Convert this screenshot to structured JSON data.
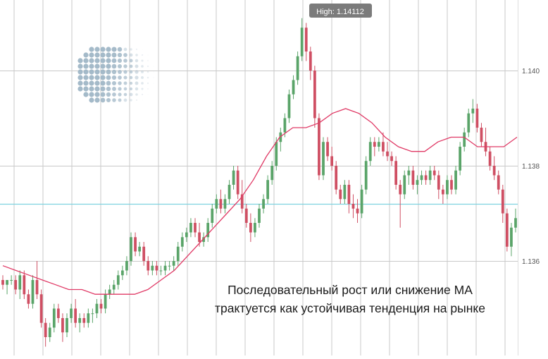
{
  "colors": {
    "bull": "#5aa469",
    "bear": "#cf4f63",
    "ma": "#e03a66",
    "level_line": "#7fd3e0",
    "grid": "#c9c9c9",
    "tooltip_bg": "#7b7b7b",
    "axis_text": "#555555"
  },
  "caption": {
    "line1": "Последовательный рост или снижение МА",
    "line2": "трактуется как устойчивая тенденция на рынке"
  },
  "logo": {
    "icon": "dotted-globe-icon"
  },
  "chart_data": {
    "type": "candlestick",
    "title": "",
    "xlabel": "",
    "ylabel": "",
    "ylim": [
      1.1342,
      1.1418
    ],
    "y_ticks": [
      1.136,
      1.138,
      1.14
    ],
    "y_tick_labels": [
      "1.136",
      "1.138",
      "1.140"
    ],
    "grid": true,
    "tooltip": {
      "label": "High: 1.14112",
      "value": 1.14112
    },
    "horizontal_level": 1.1372,
    "series": [
      {
        "kind": "candles",
        "ohlc": [
          [
            1.1356,
            1.1357,
            1.1354,
            1.1355
          ],
          [
            1.1355,
            1.1356,
            1.1353,
            1.1356
          ],
          [
            1.1356,
            1.1357,
            1.1355,
            1.1356
          ],
          [
            1.1356,
            1.1357,
            1.1353,
            1.1354
          ],
          [
            1.1354,
            1.1358,
            1.1352,
            1.1357
          ],
          [
            1.1357,
            1.1358,
            1.1352,
            1.1353
          ],
          [
            1.1353,
            1.1354,
            1.135,
            1.1351
          ],
          [
            1.1351,
            1.1357,
            1.135,
            1.1356
          ],
          [
            1.1356,
            1.136,
            1.1352,
            1.1353
          ],
          [
            1.1353,
            1.1354,
            1.1346,
            1.1347
          ],
          [
            1.1347,
            1.1348,
            1.1342,
            1.1344
          ],
          [
            1.1344,
            1.1347,
            1.1343,
            1.1346
          ],
          [
            1.1346,
            1.1351,
            1.1345,
            1.135
          ],
          [
            1.135,
            1.1351,
            1.1347,
            1.1348
          ],
          [
            1.1348,
            1.1349,
            1.1343,
            1.1345
          ],
          [
            1.1345,
            1.1349,
            1.1344,
            1.1348
          ],
          [
            1.1348,
            1.1351,
            1.1347,
            1.135
          ],
          [
            1.135,
            1.1352,
            1.1346,
            1.1347
          ],
          [
            1.1347,
            1.1349,
            1.1345,
            1.1348
          ],
          [
            1.1348,
            1.1349,
            1.1346,
            1.1347
          ],
          [
            1.1347,
            1.135,
            1.1346,
            1.1349
          ],
          [
            1.1349,
            1.135,
            1.1347,
            1.1349
          ],
          [
            1.1349,
            1.1352,
            1.1348,
            1.1351
          ],
          [
            1.1351,
            1.1352,
            1.1349,
            1.135
          ],
          [
            1.135,
            1.1354,
            1.1349,
            1.1353
          ],
          [
            1.1353,
            1.1355,
            1.1352,
            1.1354
          ],
          [
            1.1354,
            1.1356,
            1.1353,
            1.1355
          ],
          [
            1.1355,
            1.1358,
            1.1354,
            1.1357
          ],
          [
            1.1357,
            1.1359,
            1.1356,
            1.1358
          ],
          [
            1.1358,
            1.1361,
            1.1357,
            1.136
          ],
          [
            1.136,
            1.1366,
            1.1359,
            1.1365
          ],
          [
            1.1365,
            1.1366,
            1.1361,
            1.1362
          ],
          [
            1.1362,
            1.1364,
            1.1361,
            1.1363
          ],
          [
            1.1363,
            1.1364,
            1.1359,
            1.136
          ],
          [
            1.136,
            1.1361,
            1.1357,
            1.1358
          ],
          [
            1.1358,
            1.136,
            1.1357,
            1.1359
          ],
          [
            1.1359,
            1.136,
            1.1357,
            1.1358
          ],
          [
            1.1358,
            1.1359,
            1.1357,
            1.1358
          ],
          [
            1.1358,
            1.136,
            1.1357,
            1.1359
          ],
          [
            1.1359,
            1.136,
            1.1358,
            1.1359
          ],
          [
            1.1359,
            1.1361,
            1.1358,
            1.136
          ],
          [
            1.136,
            1.1364,
            1.1359,
            1.1363
          ],
          [
            1.1363,
            1.1366,
            1.1362,
            1.1365
          ],
          [
            1.1365,
            1.1367,
            1.1364,
            1.1366
          ],
          [
            1.1366,
            1.1369,
            1.1365,
            1.1368
          ],
          [
            1.1368,
            1.1369,
            1.1365,
            1.1366
          ],
          [
            1.1366,
            1.1368,
            1.1363,
            1.1364
          ],
          [
            1.1364,
            1.1366,
            1.1363,
            1.1365
          ],
          [
            1.1365,
            1.1369,
            1.1364,
            1.1368
          ],
          [
            1.1368,
            1.1372,
            1.1367,
            1.1371
          ],
          [
            1.1371,
            1.1374,
            1.137,
            1.1373
          ],
          [
            1.1373,
            1.1375,
            1.137,
            1.1371
          ],
          [
            1.1371,
            1.1374,
            1.137,
            1.1373
          ],
          [
            1.1373,
            1.1377,
            1.1372,
            1.1376
          ],
          [
            1.1376,
            1.138,
            1.1375,
            1.1379
          ],
          [
            1.1379,
            1.138,
            1.1373,
            1.1374
          ],
          [
            1.1374,
            1.1377,
            1.137,
            1.1371
          ],
          [
            1.1371,
            1.1372,
            1.1367,
            1.1368
          ],
          [
            1.1368,
            1.137,
            1.1364,
            1.1366
          ],
          [
            1.1366,
            1.1369,
            1.1365,
            1.1368
          ],
          [
            1.1368,
            1.1372,
            1.1367,
            1.1371
          ],
          [
            1.1371,
            1.1374,
            1.137,
            1.1373
          ],
          [
            1.1373,
            1.1378,
            1.1372,
            1.1377
          ],
          [
            1.1377,
            1.1381,
            1.1376,
            1.138
          ],
          [
            1.138,
            1.1386,
            1.1379,
            1.1385
          ],
          [
            1.1385,
            1.1388,
            1.1383,
            1.1387
          ],
          [
            1.1387,
            1.1391,
            1.1386,
            1.139
          ],
          [
            1.139,
            1.1396,
            1.1389,
            1.1395
          ],
          [
            1.1395,
            1.1399,
            1.1394,
            1.1398
          ],
          [
            1.1398,
            1.1404,
            1.1397,
            1.1403
          ],
          [
            1.1403,
            1.1411,
            1.1402,
            1.1409
          ],
          [
            1.1409,
            1.141,
            1.1402,
            1.1404
          ],
          [
            1.1404,
            1.1405,
            1.1398,
            1.14
          ],
          [
            1.14,
            1.1401,
            1.1388,
            1.139
          ],
          [
            1.139,
            1.1391,
            1.1377,
            1.1378
          ],
          [
            1.1378,
            1.1386,
            1.1377,
            1.1385
          ],
          [
            1.1385,
            1.1386,
            1.1381,
            1.1382
          ],
          [
            1.1382,
            1.1384,
            1.1379,
            1.138
          ],
          [
            1.138,
            1.1381,
            1.1374,
            1.1375
          ],
          [
            1.1375,
            1.1376,
            1.1372,
            1.1373
          ],
          [
            1.1373,
            1.1377,
            1.1372,
            1.1376
          ],
          [
            1.1376,
            1.1377,
            1.137,
            1.1372
          ],
          [
            1.1372,
            1.1374,
            1.1369,
            1.1371
          ],
          [
            1.1371,
            1.1373,
            1.1368,
            1.137
          ],
          [
            1.137,
            1.1376,
            1.1369,
            1.1375
          ],
          [
            1.1375,
            1.1382,
            1.1374,
            1.1381
          ],
          [
            1.1381,
            1.1386,
            1.138,
            1.1385
          ],
          [
            1.1385,
            1.1386,
            1.1382,
            1.1384
          ],
          [
            1.1384,
            1.1386,
            1.1383,
            1.1385
          ],
          [
            1.1385,
            1.1387,
            1.1382,
            1.1383
          ],
          [
            1.1383,
            1.1385,
            1.1381,
            1.1382
          ],
          [
            1.1382,
            1.1383,
            1.138,
            1.1381
          ],
          [
            1.1381,
            1.1382,
            1.1375,
            1.1376
          ],
          [
            1.1376,
            1.1377,
            1.1367,
            1.1374
          ],
          [
            1.1374,
            1.1379,
            1.1373,
            1.1378
          ],
          [
            1.1378,
            1.138,
            1.1376,
            1.1379
          ],
          [
            1.1379,
            1.138,
            1.1375,
            1.1376
          ],
          [
            1.1376,
            1.1378,
            1.1374,
            1.1377
          ],
          [
            1.1377,
            1.1379,
            1.1376,
            1.1378
          ],
          [
            1.1378,
            1.1379,
            1.1376,
            1.1377
          ],
          [
            1.1377,
            1.138,
            1.1376,
            1.1379
          ],
          [
            1.1379,
            1.138,
            1.1377,
            1.1378
          ],
          [
            1.1378,
            1.1379,
            1.1373,
            1.1375
          ],
          [
            1.1375,
            1.1376,
            1.1372,
            1.1374
          ],
          [
            1.1374,
            1.1378,
            1.1373,
            1.1377
          ],
          [
            1.1377,
            1.1378,
            1.1374,
            1.1375
          ],
          [
            1.1375,
            1.138,
            1.1374,
            1.1379
          ],
          [
            1.1379,
            1.1385,
            1.1378,
            1.1384
          ],
          [
            1.1384,
            1.1388,
            1.1383,
            1.1387
          ],
          [
            1.1387,
            1.1392,
            1.1386,
            1.1391
          ],
          [
            1.1391,
            1.1394,
            1.1389,
            1.1392
          ],
          [
            1.1392,
            1.1393,
            1.1387,
            1.1388
          ],
          [
            1.1388,
            1.1389,
            1.1384,
            1.1385
          ],
          [
            1.1385,
            1.1388,
            1.1382,
            1.1383
          ],
          [
            1.1383,
            1.1384,
            1.1379,
            1.138
          ],
          [
            1.138,
            1.1382,
            1.1377,
            1.1378
          ],
          [
            1.1378,
            1.1379,
            1.1374,
            1.1375
          ],
          [
            1.1375,
            1.1376,
            1.1368,
            1.137
          ],
          [
            1.137,
            1.1371,
            1.1362,
            1.1363
          ],
          [
            1.1363,
            1.1368,
            1.1361,
            1.1367
          ],
          [
            1.1367,
            1.1371,
            1.1366,
            1.1369
          ]
        ]
      },
      {
        "kind": "line",
        "values": [
          1.1359,
          1.1358,
          1.1357,
          1.1356,
          1.1355,
          1.1354,
          1.1354,
          1.1353,
          1.1353,
          1.1353,
          1.1353,
          1.1354,
          1.1356,
          1.1358,
          1.1361,
          1.1364,
          1.1367,
          1.137,
          1.1373,
          1.1377,
          1.1382,
          1.1386,
          1.1388,
          1.1388,
          1.1389,
          1.1391,
          1.1392,
          1.1391,
          1.1389,
          1.1386,
          1.1384,
          1.1383,
          1.1383,
          1.1385,
          1.1386,
          1.1386,
          1.1384,
          1.1384,
          1.1384,
          1.1386
        ],
        "note": ""
      }
    ]
  }
}
